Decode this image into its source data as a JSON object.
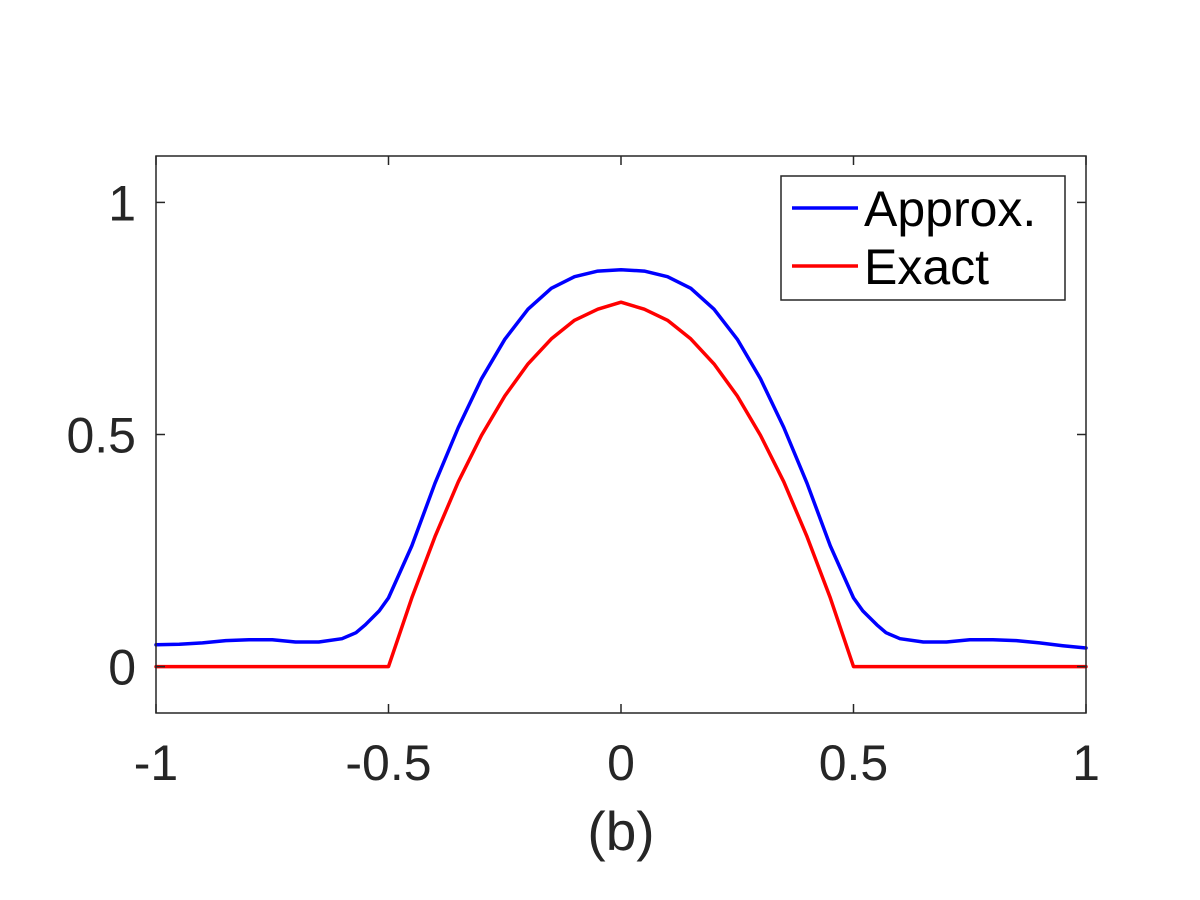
{
  "chart_data": {
    "type": "line",
    "title": "",
    "xlabel": "(b)",
    "ylabel": "",
    "xlim": [
      -1,
      1
    ],
    "ylim": [
      -0.1,
      1.1
    ],
    "xticks": [
      -1,
      -0.5,
      0,
      0.5,
      1
    ],
    "xtick_labels": [
      "-1",
      "-0.5",
      "0",
      "0.5",
      "1"
    ],
    "yticks": [
      0,
      0.5,
      1
    ],
    "ytick_labels": [
      "0",
      "0.5",
      "1"
    ],
    "grid": false,
    "legend_position": "top-right",
    "series": [
      {
        "name": "Approx.",
        "color": "#0000ff",
        "x": [
          -1,
          -0.95,
          -0.9,
          -0.85,
          -0.8,
          -0.75,
          -0.7,
          -0.65,
          -0.6,
          -0.57,
          -0.55,
          -0.52,
          -0.5,
          -0.45,
          -0.4,
          -0.35,
          -0.3,
          -0.25,
          -0.2,
          -0.15,
          -0.1,
          -0.05,
          0,
          0.05,
          0.1,
          0.15,
          0.2,
          0.25,
          0.3,
          0.35,
          0.4,
          0.45,
          0.5,
          0.52,
          0.55,
          0.57,
          0.6,
          0.65,
          0.7,
          0.75,
          0.8,
          0.85,
          0.9,
          0.95,
          1
        ],
        "y": [
          0.047,
          0.048,
          0.051,
          0.056,
          0.058,
          0.058,
          0.053,
          0.053,
          0.06,
          0.073,
          0.09,
          0.12,
          0.148,
          0.26,
          0.395,
          0.515,
          0.62,
          0.705,
          0.77,
          0.815,
          0.84,
          0.852,
          0.855,
          0.852,
          0.84,
          0.815,
          0.77,
          0.705,
          0.62,
          0.515,
          0.395,
          0.26,
          0.148,
          0.12,
          0.09,
          0.073,
          0.06,
          0.053,
          0.053,
          0.058,
          0.058,
          0.056,
          0.051,
          0.045,
          0.04
        ]
      },
      {
        "name": "Exact",
        "color": "#ff0000",
        "x": [
          -1,
          -0.5,
          -0.45,
          -0.4,
          -0.35,
          -0.3,
          -0.25,
          -0.2,
          -0.15,
          -0.1,
          -0.05,
          0,
          0.05,
          0.1,
          0.15,
          0.2,
          0.25,
          0.3,
          0.35,
          0.4,
          0.45,
          0.5,
          1
        ],
        "y": [
          0,
          0,
          0.148,
          0.28,
          0.398,
          0.498,
          0.583,
          0.652,
          0.706,
          0.746,
          0.77,
          0.785,
          0.77,
          0.746,
          0.706,
          0.652,
          0.583,
          0.498,
          0.398,
          0.28,
          0.148,
          0,
          0
        ]
      }
    ]
  }
}
